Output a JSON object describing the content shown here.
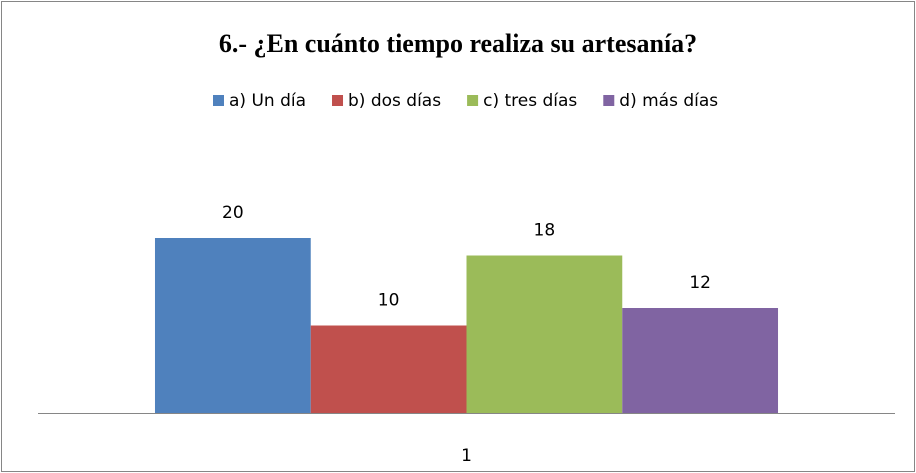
{
  "chart_data": {
    "type": "bar",
    "title": "6.- ¿En cuánto tiempo realiza su artesanía?",
    "categories": [
      "1"
    ],
    "series": [
      {
        "name": "a) Un día",
        "color": "#4f81bd",
        "values": [
          20
        ]
      },
      {
        "name": "b) dos días",
        "color": "#c0504d",
        "values": [
          10
        ]
      },
      {
        "name": "c) tres días",
        "color": "#9bbb59",
        "values": [
          18
        ]
      },
      {
        "name": "d) más días",
        "color": "#8064a2",
        "values": [
          12
        ]
      }
    ],
    "ylim": [
      0,
      30
    ],
    "legend": "top",
    "data_labels": true
  }
}
